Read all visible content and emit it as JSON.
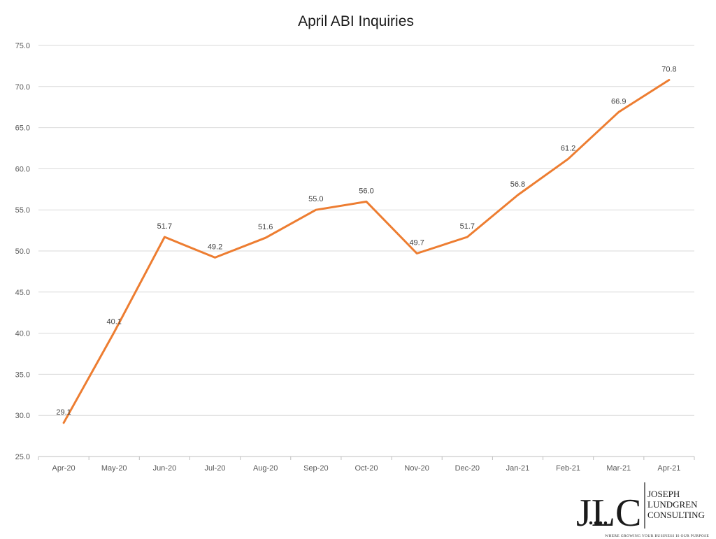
{
  "chart_data": {
    "type": "line",
    "title": "April ABI Inquiries",
    "xlabel": "",
    "ylabel": "",
    "categories": [
      "Apr-20",
      "May-20",
      "Jun-20",
      "Jul-20",
      "Aug-20",
      "Sep-20",
      "Oct-20",
      "Nov-20",
      "Dec-20",
      "Jan-21",
      "Feb-21",
      "Mar-21",
      "Apr-21"
    ],
    "series": [
      {
        "values": [
          29.1,
          40.1,
          51.7,
          49.2,
          51.6,
          55.0,
          56.0,
          49.7,
          51.7,
          56.8,
          61.2,
          66.9,
          70.8
        ],
        "labels": [
          "29.1",
          "40.1",
          "51.7",
          "49.2",
          "51.6",
          "55.0",
          "56.0",
          "49.7",
          "51.7",
          "56.8",
          "61.2",
          "66.9",
          "70.8"
        ],
        "color": "#ed7d31"
      }
    ],
    "ylim": [
      25,
      75
    ],
    "yticks": [
      25,
      30,
      35,
      40,
      45,
      50,
      55,
      60,
      65,
      70,
      75
    ],
    "ytick_labels": [
      "25.0",
      "30.0",
      "35.0",
      "40.0",
      "45.0",
      "50.0",
      "55.0",
      "60.0",
      "65.0",
      "70.0",
      "75.0"
    ],
    "grid": true,
    "legend": "none"
  },
  "logo": {
    "letters": "JLC",
    "name_line1": "JOSEPH",
    "name_line2": "LUNDGREN",
    "name_line3": "CONSULTING",
    "tagline": "WHERE GROWING YOUR BUSINESS IS OUR PURPOSE"
  }
}
